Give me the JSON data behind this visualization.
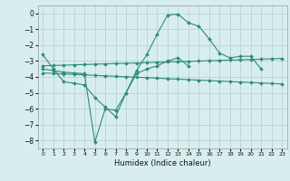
{
  "xlabel": "Humidex (Indice chaleur)",
  "x": [
    0,
    1,
    2,
    3,
    4,
    5,
    6,
    7,
    8,
    9,
    10,
    11,
    12,
    13,
    14,
    15,
    16,
    17,
    18,
    19,
    20,
    21,
    22,
    23
  ],
  "y_zigzag1": [
    -2.6,
    -3.5,
    -4.3,
    -4.4,
    -4.5,
    -5.3,
    -5.9,
    -6.5,
    -5.0,
    -3.6,
    -2.6,
    -1.3,
    -0.1,
    -0.05,
    -0.6,
    -0.8,
    -1.6,
    -2.5,
    -2.8,
    -2.7,
    -2.7,
    -3.5,
    null,
    null
  ],
  "y_zigzag2": [
    -3.5,
    -3.6,
    -3.7,
    -3.75,
    -3.8,
    -8.1,
    -6.0,
    -6.1,
    -5.0,
    -3.8,
    -3.5,
    -3.3,
    -3.0,
    -2.8,
    -3.3,
    null,
    null,
    null,
    null,
    null,
    null,
    null,
    null,
    null
  ],
  "y_flat1": [
    -3.3,
    -3.28,
    -3.26,
    -3.24,
    -3.22,
    -3.2,
    -3.18,
    -3.16,
    -3.14,
    -3.12,
    -3.1,
    -3.08,
    -3.06,
    -3.04,
    -3.02,
    -3.0,
    -2.98,
    -2.96,
    -2.94,
    -2.92,
    -2.9,
    -2.88,
    -2.86,
    -2.84
  ],
  "y_flat2": [
    -3.75,
    -3.78,
    -3.81,
    -3.84,
    -3.87,
    -3.9,
    -3.93,
    -3.96,
    -3.99,
    -4.02,
    -4.05,
    -4.08,
    -4.11,
    -4.14,
    -4.17,
    -4.2,
    -4.23,
    -4.26,
    -4.29,
    -4.32,
    -4.35,
    -4.38,
    -4.41,
    -4.44
  ],
  "line_color": "#2e8b7a",
  "bg_color": "#d8eeee",
  "grid_color": "#b0cece",
  "xlim": [
    -0.5,
    23.5
  ],
  "ylim": [
    -8.5,
    0.5
  ],
  "yticks": [
    0,
    -1,
    -2,
    -3,
    -4,
    -5,
    -6,
    -7,
    -8
  ],
  "xticks": [
    0,
    1,
    2,
    3,
    4,
    5,
    6,
    7,
    8,
    9,
    10,
    11,
    12,
    13,
    14,
    15,
    16,
    17,
    18,
    19,
    20,
    21,
    22,
    23
  ]
}
